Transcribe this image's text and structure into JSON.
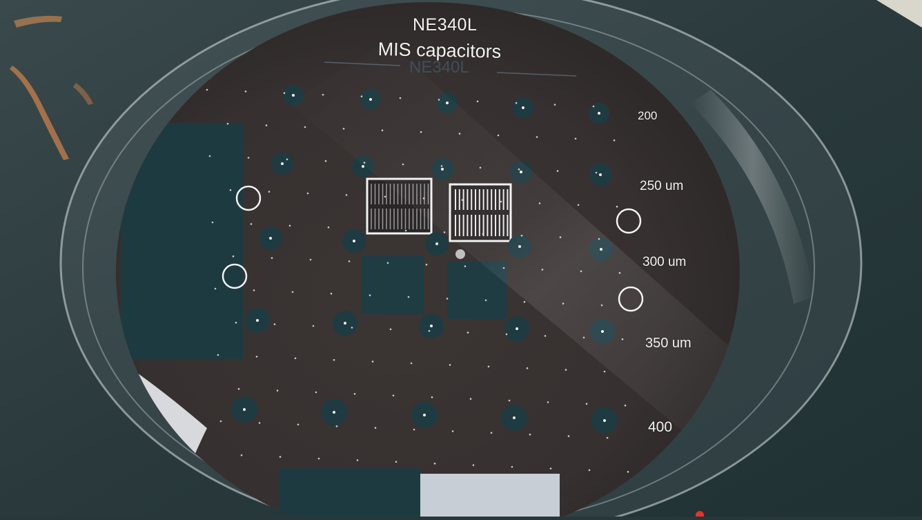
{
  "wafer": {
    "title_line1": "NE340L",
    "title_line2": "MIS capacitors",
    "title_line3": "NE340L",
    "size_labels": [
      "200",
      "250 um",
      "300 um",
      "350 um",
      "400"
    ]
  },
  "colors": {
    "background_surface": "#27373a",
    "wafer": "#3a3433",
    "pad": "#1e3b42",
    "label_text": "#f2f2ee"
  },
  "objects": [
    "petri-dish",
    "silicon-wafer",
    "capacitor-pad-array",
    "test-structures",
    "alignment-marks"
  ]
}
